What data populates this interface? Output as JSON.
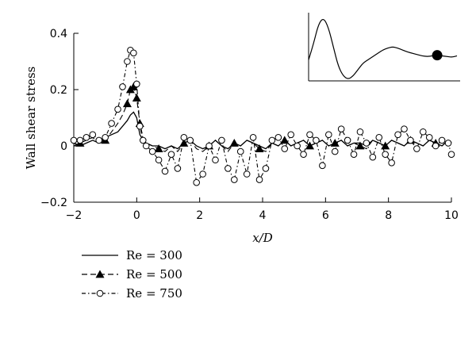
{
  "chart_data": {
    "type": "line",
    "xlabel": "x/D",
    "ylabel": "Wall shear stress",
    "xlim": [
      -2,
      10
    ],
    "ylim": [
      -0.2,
      0.4
    ],
    "x_ticks": [
      "−2",
      "0",
      "2",
      "4",
      "6",
      "8",
      "10"
    ],
    "x_tick_values": [
      -2,
      0,
      2,
      4,
      6,
      8,
      10
    ],
    "y_ticks": [
      "−0.2",
      "0",
      "0.2",
      "0.4"
    ],
    "y_tick_values": [
      -0.2,
      0,
      0.2,
      0.4
    ],
    "grid": false,
    "legend_position": "bottom-left",
    "series": [
      {
        "name": "Re = 300",
        "style": "solid",
        "marker": "none",
        "x": [
          -2.0,
          -1.8,
          -1.6,
          -1.4,
          -1.2,
          -1.0,
          -0.8,
          -0.6,
          -0.45,
          -0.3,
          -0.2,
          -0.1,
          0.0,
          0.1,
          0.2,
          0.3,
          0.5,
          0.7,
          0.9,
          1.1,
          1.3,
          1.5,
          1.7,
          1.9,
          2.1,
          2.3,
          2.5,
          2.7,
          2.9,
          3.1,
          3.3,
          3.5,
          3.7,
          3.9,
          4.1,
          4.3,
          4.5,
          4.7,
          4.9,
          5.1,
          5.3,
          5.5,
          5.7,
          5.9,
          6.1,
          6.3,
          6.5,
          6.7,
          6.9,
          7.1,
          7.3,
          7.5,
          7.7,
          7.9,
          8.1,
          8.3,
          8.5,
          8.7,
          8.9,
          9.1,
          9.3,
          9.5,
          9.7,
          9.9,
          10.0
        ],
        "y": [
          0.01,
          0.0,
          0.01,
          0.02,
          0.01,
          0.03,
          0.04,
          0.05,
          0.07,
          0.09,
          0.11,
          0.12,
          0.1,
          0.04,
          0.02,
          0.01,
          0.0,
          0.0,
          -0.01,
          0.0,
          -0.01,
          0.01,
          0.02,
          0.0,
          -0.01,
          0.0,
          0.02,
          0.0,
          -0.01,
          0.01,
          0.0,
          0.02,
          0.01,
          0.0,
          -0.01,
          0.01,
          0.0,
          0.02,
          0.0,
          0.01,
          0.02,
          0.0,
          0.01,
          0.02,
          0.0,
          0.01,
          0.02,
          0.0,
          0.01,
          0.01,
          0.0,
          0.02,
          0.01,
          0.0,
          0.02,
          0.01,
          0.0,
          0.02,
          0.01,
          0.0,
          0.02,
          0.01,
          0.0,
          0.02,
          0.01
        ]
      },
      {
        "name": "Re = 500",
        "style": "dashed",
        "marker": "triangle",
        "x": [
          -2.0,
          -1.8,
          -1.6,
          -1.4,
          -1.2,
          -1.0,
          -0.8,
          -0.6,
          -0.45,
          -0.3,
          -0.2,
          -0.1,
          0.0,
          0.1,
          0.2,
          0.3,
          0.5,
          0.7,
          0.9,
          1.1,
          1.3,
          1.5,
          1.7,
          1.9,
          2.1,
          2.3,
          2.5,
          2.7,
          2.9,
          3.1,
          3.3,
          3.5,
          3.7,
          3.9,
          4.1,
          4.3,
          4.5,
          4.7,
          4.9,
          5.1,
          5.3,
          5.5,
          5.7,
          5.9,
          6.1,
          6.3,
          6.5,
          6.7,
          6.9,
          7.1,
          7.3,
          7.5,
          7.7,
          7.9,
          8.1,
          8.3,
          8.5,
          8.7,
          8.9,
          9.1,
          9.3,
          9.5,
          9.7,
          9.9,
          10.0
        ],
        "y": [
          0.0,
          0.01,
          0.02,
          0.03,
          0.01,
          0.02,
          0.05,
          0.08,
          0.11,
          0.15,
          0.2,
          0.21,
          0.17,
          0.08,
          0.03,
          0.01,
          0.0,
          -0.01,
          -0.02,
          0.0,
          -0.02,
          0.01,
          0.02,
          -0.01,
          -0.02,
          0.0,
          0.02,
          0.0,
          -0.02,
          0.01,
          0.0,
          0.02,
          0.01,
          -0.01,
          -0.02,
          0.01,
          0.0,
          0.02,
          0.0,
          0.01,
          0.02,
          0.0,
          0.01,
          0.02,
          0.0,
          0.01,
          0.02,
          0.0,
          0.01,
          0.0,
          -0.01,
          0.02,
          0.01,
          0.0,
          0.02,
          0.01,
          0.0,
          0.02,
          0.01,
          0.0,
          0.02,
          0.01,
          0.0,
          0.02,
          0.01
        ]
      },
      {
        "name": "Re = 750",
        "style": "dash-dot",
        "marker": "circle",
        "x": [
          -2.0,
          -1.8,
          -1.6,
          -1.4,
          -1.2,
          -1.0,
          -0.8,
          -0.6,
          -0.45,
          -0.3,
          -0.2,
          -0.1,
          0.0,
          0.1,
          0.2,
          0.3,
          0.5,
          0.7,
          0.9,
          1.1,
          1.3,
          1.5,
          1.7,
          1.9,
          2.1,
          2.3,
          2.5,
          2.7,
          2.9,
          3.1,
          3.3,
          3.5,
          3.7,
          3.9,
          4.1,
          4.3,
          4.5,
          4.7,
          4.9,
          5.1,
          5.3,
          5.5,
          5.7,
          5.9,
          6.1,
          6.3,
          6.5,
          6.7,
          6.9,
          7.1,
          7.3,
          7.5,
          7.7,
          7.9,
          8.1,
          8.3,
          8.5,
          8.7,
          8.9,
          9.1,
          9.3,
          9.5,
          9.7,
          9.9,
          10.0
        ],
        "y": [
          0.02,
          0.02,
          0.03,
          0.04,
          0.02,
          0.03,
          0.08,
          0.13,
          0.21,
          0.3,
          0.34,
          0.33,
          0.22,
          0.07,
          0.02,
          0.0,
          -0.02,
          -0.05,
          -0.09,
          -0.03,
          -0.08,
          0.03,
          0.02,
          -0.13,
          -0.1,
          0.0,
          -0.05,
          0.02,
          -0.08,
          -0.12,
          -0.02,
          -0.1,
          0.03,
          -0.12,
          -0.08,
          0.02,
          0.03,
          -0.01,
          0.04,
          0.0,
          -0.03,
          0.04,
          0.02,
          -0.07,
          0.04,
          -0.02,
          0.06,
          0.02,
          -0.03,
          0.05,
          0.01,
          -0.04,
          0.03,
          -0.03,
          -0.06,
          0.04,
          0.06,
          0.02,
          -0.01,
          0.05,
          0.03,
          0.0,
          0.02,
          0.01,
          -0.03
        ]
      }
    ],
    "inset": {
      "x": [
        0,
        1,
        2,
        3,
        4,
        5,
        6,
        7,
        8,
        9,
        10,
        11,
        12,
        13,
        14,
        15,
        16,
        17,
        18,
        19,
        20,
        21,
        22,
        23,
        24,
        25,
        26,
        27,
        28,
        29,
        30
      ],
      "y": [
        0.3,
        0.55,
        0.85,
        0.95,
        0.8,
        0.5,
        0.2,
        0.05,
        0.0,
        0.05,
        0.15,
        0.25,
        0.3,
        0.35,
        0.4,
        0.45,
        0.48,
        0.5,
        0.48,
        0.45,
        0.42,
        0.4,
        0.38,
        0.36,
        0.35,
        0.36,
        0.37,
        0.36,
        0.35,
        0.34,
        0.36
      ],
      "marker_index": 26
    }
  }
}
